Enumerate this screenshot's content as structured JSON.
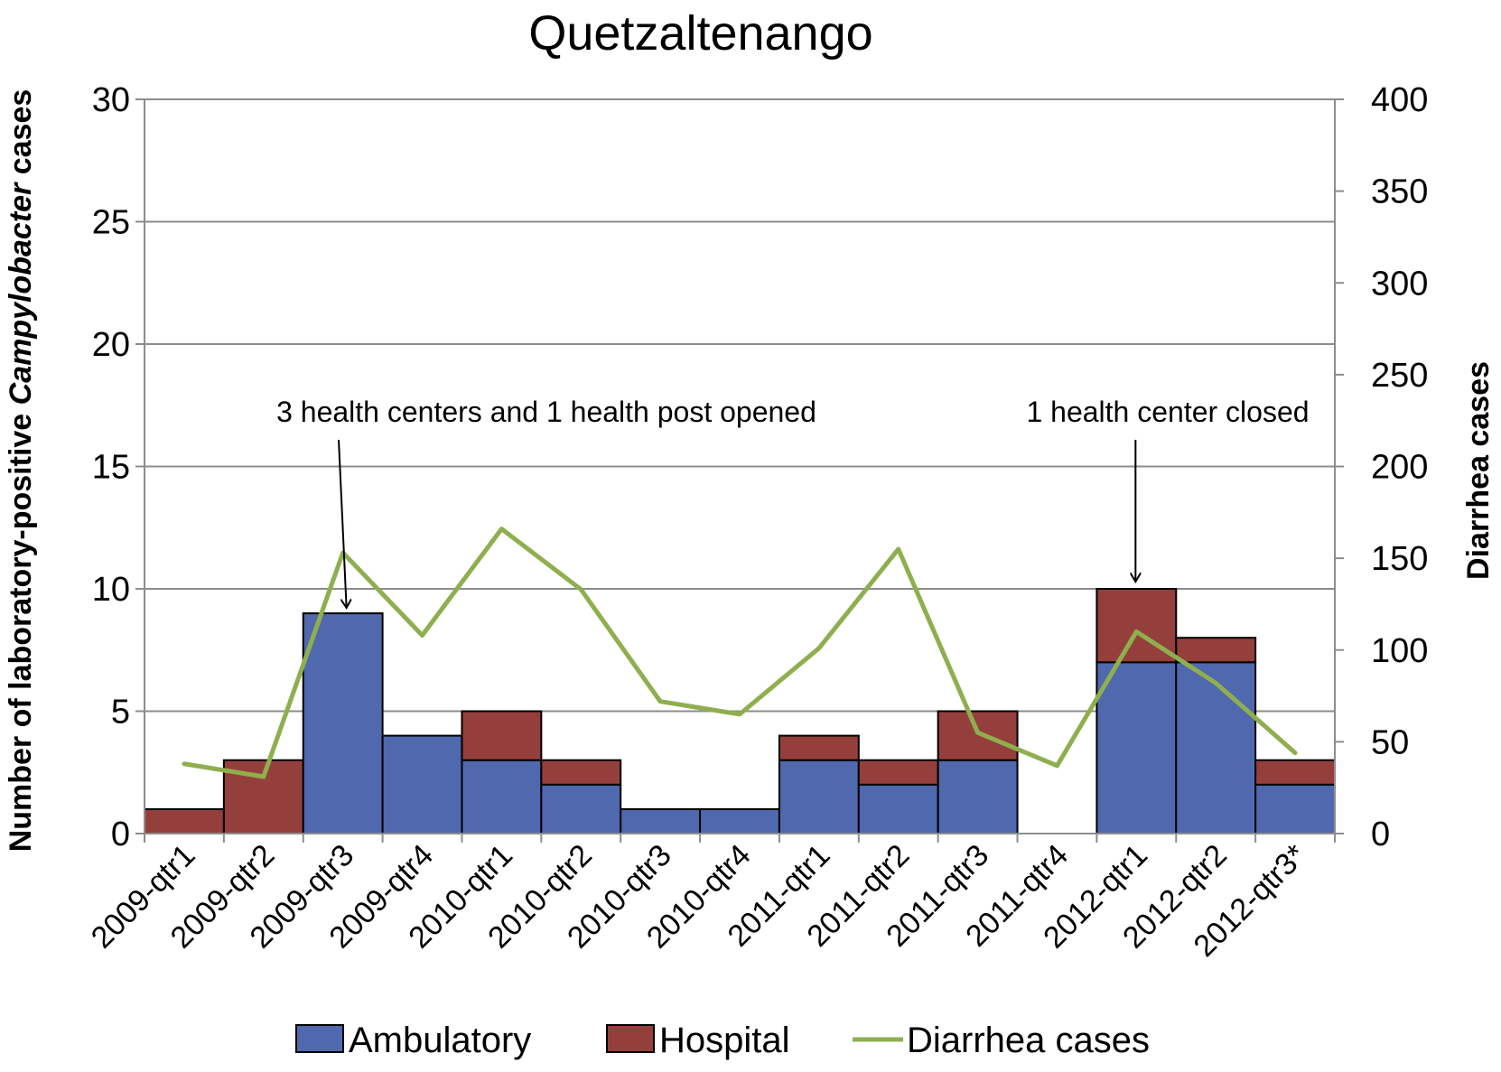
{
  "chart_data": {
    "type": "bar",
    "title": "Quetzaltenango",
    "ylabel_left": {
      "before": "Number of laboratory-positive ",
      "italic": "Campylobacter",
      "after": " cases"
    },
    "ylabel_right": "Diarrhea cases",
    "categories": [
      "2009-qtr1",
      "2009-qtr2",
      "2009-qtr3",
      "2009-qtr4",
      "2010-qtr1",
      "2010-qtr2",
      "2010-qtr3",
      "2010-qtr4",
      "2011-qtr1",
      "2011-qtr2",
      "2011-qtr3",
      "2011-qtr4",
      "2012-qtr1",
      "2012-qtr2",
      "2012-qtr3*"
    ],
    "ylim_left": [
      0,
      30
    ],
    "yticks_left": [
      "0",
      "5",
      "10",
      "15",
      "20",
      "25",
      "30"
    ],
    "ylim_right": [
      0,
      400
    ],
    "yticks_right": [
      "0",
      "50",
      "100",
      "150",
      "200",
      "250",
      "300",
      "350",
      "400"
    ],
    "series": [
      {
        "name": "Ambulatory",
        "type": "stacked-bar",
        "axis": "left",
        "color": "#5068AE",
        "values": [
          0,
          0,
          9,
          4,
          3,
          2,
          1,
          1,
          3,
          2,
          3,
          0,
          7,
          7,
          2
        ]
      },
      {
        "name": "Hospital",
        "type": "stacked-bar",
        "axis": "left",
        "color": "#953F3C",
        "values": [
          1,
          3,
          0,
          0,
          2,
          1,
          0,
          0,
          1,
          1,
          2,
          0,
          3,
          1,
          1
        ]
      },
      {
        "name": "Diarrhea cases",
        "type": "line",
        "axis": "right",
        "color": "#8FAF4F",
        "values": [
          38,
          31,
          153,
          108,
          166,
          133,
          72,
          65,
          101,
          155,
          55,
          37,
          110,
          82,
          44
        ]
      }
    ],
    "annotations": [
      {
        "text": "3 health centers and 1 health post opened",
        "category": "2009-qtr3"
      },
      {
        "text": "1 health center closed",
        "category": "2012-qtr1"
      }
    ],
    "grid": true,
    "legend": "bottom"
  }
}
